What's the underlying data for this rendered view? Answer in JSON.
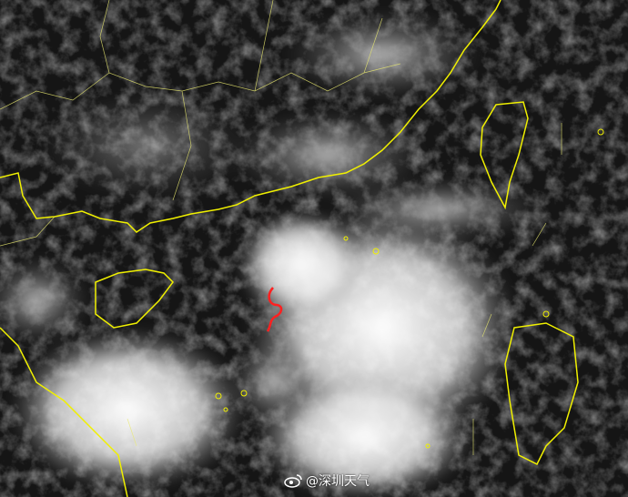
{
  "image": {
    "description_kind": "satellite-cloud-image",
    "watermark": "@深圳天气",
    "typhoon_symbol_color": "#ff2020",
    "coastline_color": "#f0f000",
    "border_color": "#e8e870"
  }
}
